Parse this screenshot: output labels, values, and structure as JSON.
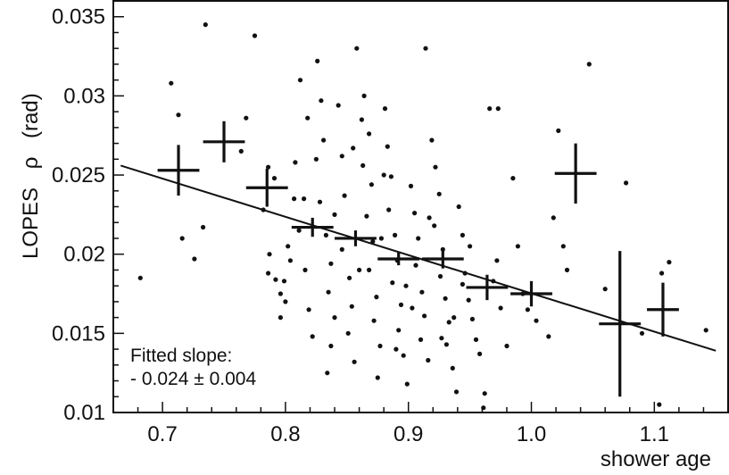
{
  "chart_data": {
    "type": "scatter",
    "title": "",
    "xlabel": "shower age",
    "ylabel_text": "LOPES",
    "ylabel_symbol": "ρ",
    "ylabel_unit": "(rad)",
    "xlim": [
      0.66,
      1.16
    ],
    "ylim": [
      0.01,
      0.036
    ],
    "xticks": [
      0.7,
      0.8,
      0.9,
      1.0,
      1.1
    ],
    "xtick_labels": [
      "0.7",
      "0.8",
      "0.9",
      "1.0",
      "1.1"
    ],
    "yticks": [
      0.01,
      0.015,
      0.02,
      0.025,
      0.03,
      0.035
    ],
    "ytick_labels": [
      "0.01",
      "0.015",
      "0.02",
      "0.025",
      "0.03",
      "0.035"
    ],
    "grid": false,
    "legend": "none",
    "annotation_line1": "Fitted slope:",
    "annotation_line2": "- 0.024 ± 0.004",
    "fit_line": {
      "slope": -0.024,
      "x": [
        0.666,
        1.15
      ],
      "y": [
        0.0256,
        0.0139
      ]
    },
    "binned_means": [
      {
        "x": 0.713,
        "y": 0.0253,
        "xerr": 0.017,
        "yerr": 0.0016
      },
      {
        "x": 0.75,
        "y": 0.0271,
        "xerr": 0.017,
        "yerr": 0.0013
      },
      {
        "x": 0.785,
        "y": 0.0242,
        "xerr": 0.017,
        "yerr": 0.0012
      },
      {
        "x": 0.822,
        "y": 0.0217,
        "xerr": 0.017,
        "yerr": 0.0006
      },
      {
        "x": 0.857,
        "y": 0.021,
        "xerr": 0.017,
        "yerr": 0.0005
      },
      {
        "x": 0.892,
        "y": 0.0197,
        "xerr": 0.017,
        "yerr": 0.0004
      },
      {
        "x": 0.928,
        "y": 0.0197,
        "xerr": 0.017,
        "yerr": 0.0006
      },
      {
        "x": 0.964,
        "y": 0.0179,
        "xerr": 0.017,
        "yerr": 0.0008
      },
      {
        "x": 1.0,
        "y": 0.0175,
        "xerr": 0.017,
        "yerr": 0.0008
      },
      {
        "x": 1.036,
        "y": 0.0251,
        "xerr": 0.017,
        "yerr": 0.0019
      },
      {
        "x": 1.072,
        "y": 0.0156,
        "xerr": 0.017,
        "yerr": 0.0046
      },
      {
        "x": 1.107,
        "y": 0.0165,
        "xerr": 0.013,
        "yerr": 0.0017
      }
    ],
    "scatter_points": [
      [
        0.682,
        0.0185
      ],
      [
        0.735,
        0.0345
      ],
      [
        0.775,
        0.0338
      ],
      [
        0.707,
        0.0308
      ],
      [
        0.713,
        0.0288
      ],
      [
        0.716,
        0.021
      ],
      [
        0.726,
        0.0197
      ],
      [
        0.733,
        0.0217
      ],
      [
        0.764,
        0.0265
      ],
      [
        0.768,
        0.0286
      ],
      [
        0.786,
        0.0255
      ],
      [
        0.791,
        0.0248
      ],
      [
        0.782,
        0.0228
      ],
      [
        0.787,
        0.02
      ],
      [
        0.786,
        0.0188
      ],
      [
        0.792,
        0.0184
      ],
      [
        0.796,
        0.0175
      ],
      [
        0.8,
        0.017
      ],
      [
        0.802,
        0.0205
      ],
      [
        0.804,
        0.0196
      ],
      [
        0.796,
        0.016
      ],
      [
        0.807,
        0.0235
      ],
      [
        0.812,
        0.031
      ],
      [
        0.818,
        0.0286
      ],
      [
        0.811,
        0.0215
      ],
      [
        0.816,
        0.019
      ],
      [
        0.819,
        0.0165
      ],
      [
        0.822,
        0.0148
      ],
      [
        0.826,
        0.0322
      ],
      [
        0.829,
        0.0297
      ],
      [
        0.831,
        0.0272
      ],
      [
        0.828,
        0.0233
      ],
      [
        0.833,
        0.0212
      ],
      [
        0.837,
        0.0194
      ],
      [
        0.835,
        0.0176
      ],
      [
        0.84,
        0.016
      ],
      [
        0.837,
        0.0142
      ],
      [
        0.834,
        0.0125
      ],
      [
        0.843,
        0.0294
      ],
      [
        0.846,
        0.0262
      ],
      [
        0.848,
        0.0237
      ],
      [
        0.846,
        0.0203
      ],
      [
        0.852,
        0.0185
      ],
      [
        0.854,
        0.0167
      ],
      [
        0.851,
        0.015
      ],
      [
        0.856,
        0.0132
      ],
      [
        0.858,
        0.033
      ],
      [
        0.862,
        0.0285
      ],
      [
        0.864,
        0.03
      ],
      [
        0.868,
        0.0276
      ],
      [
        0.863,
        0.0256
      ],
      [
        0.87,
        0.0244
      ],
      [
        0.866,
        0.0224
      ],
      [
        0.871,
        0.0208
      ],
      [
        0.868,
        0.019
      ],
      [
        0.874,
        0.0173
      ],
      [
        0.872,
        0.0158
      ],
      [
        0.877,
        0.0142
      ],
      [
        0.875,
        0.0122
      ],
      [
        0.881,
        0.0292
      ],
      [
        0.883,
        0.0268
      ],
      [
        0.886,
        0.0249
      ],
      [
        0.884,
        0.0228
      ],
      [
        0.889,
        0.0212
      ],
      [
        0.891,
        0.0196
      ],
      [
        0.887,
        0.0182
      ],
      [
        0.894,
        0.0168
      ],
      [
        0.892,
        0.0152
      ],
      [
        0.896,
        0.0136
      ],
      [
        0.899,
        0.0118
      ],
      [
        0.902,
        0.0243
      ],
      [
        0.905,
        0.0226
      ],
      [
        0.908,
        0.021
      ],
      [
        0.906,
        0.0193
      ],
      [
        0.911,
        0.0176
      ],
      [
        0.913,
        0.0161
      ],
      [
        0.91,
        0.0146
      ],
      [
        0.916,
        0.0133
      ],
      [
        0.914,
        0.033
      ],
      [
        0.919,
        0.0272
      ],
      [
        0.922,
        0.0255
      ],
      [
        0.925,
        0.0238
      ],
      [
        0.921,
        0.0218
      ],
      [
        0.928,
        0.0203
      ],
      [
        0.926,
        0.0186
      ],
      [
        0.93,
        0.0172
      ],
      [
        0.933,
        0.0157
      ],
      [
        0.931,
        0.0143
      ],
      [
        0.936,
        0.0128
      ],
      [
        0.939,
        0.0113
      ],
      [
        0.941,
        0.023
      ],
      [
        0.944,
        0.0212
      ],
      [
        0.946,
        0.0188
      ],
      [
        0.949,
        0.0171
      ],
      [
        0.952,
        0.0159
      ],
      [
        0.955,
        0.0146
      ],
      [
        0.958,
        0.0137
      ],
      [
        0.961,
        0.0103
      ],
      [
        0.966,
        0.0292
      ],
      [
        0.973,
        0.0292
      ],
      [
        0.969,
        0.0183
      ],
      [
        0.975,
        0.0166
      ],
      [
        0.98,
        0.0142
      ],
      [
        0.985,
        0.0248
      ],
      [
        0.989,
        0.0205
      ],
      [
        0.993,
        0.0175
      ],
      [
        0.997,
        0.0165
      ],
      [
        1.004,
        0.0158
      ],
      [
        1.014,
        0.0148
      ],
      [
        1.022,
        0.0278
      ],
      [
        1.018,
        0.0223
      ],
      [
        1.026,
        0.0205
      ],
      [
        1.029,
        0.019
      ],
      [
        1.047,
        0.032
      ],
      [
        1.06,
        0.0178
      ],
      [
        1.077,
        0.0245
      ],
      [
        1.09,
        0.015
      ],
      [
        1.106,
        0.0188
      ],
      [
        1.112,
        0.0195
      ],
      [
        1.142,
        0.0152
      ],
      [
        1.104,
        0.0105
      ],
      [
        0.962,
        0.0112
      ],
      [
        0.89,
        0.014
      ],
      [
        0.88,
        0.025
      ],
      [
        0.855,
        0.0267
      ],
      [
        0.84,
        0.0225
      ],
      [
        0.825,
        0.026
      ],
      [
        0.898,
        0.018
      ],
      [
        0.917,
        0.0223
      ],
      [
        0.937,
        0.016
      ],
      [
        0.95,
        0.0205
      ],
      [
        0.972,
        0.0196
      ],
      [
        0.815,
        0.0235
      ],
      [
        0.808,
        0.0258
      ],
      [
        0.799,
        0.0183
      ],
      [
        0.86,
        0.019
      ],
      [
        0.878,
        0.021
      ],
      [
        0.903,
        0.0166
      ],
      [
        0.927,
        0.0147
      ],
      [
        0.944,
        0.0181
      ]
    ]
  }
}
